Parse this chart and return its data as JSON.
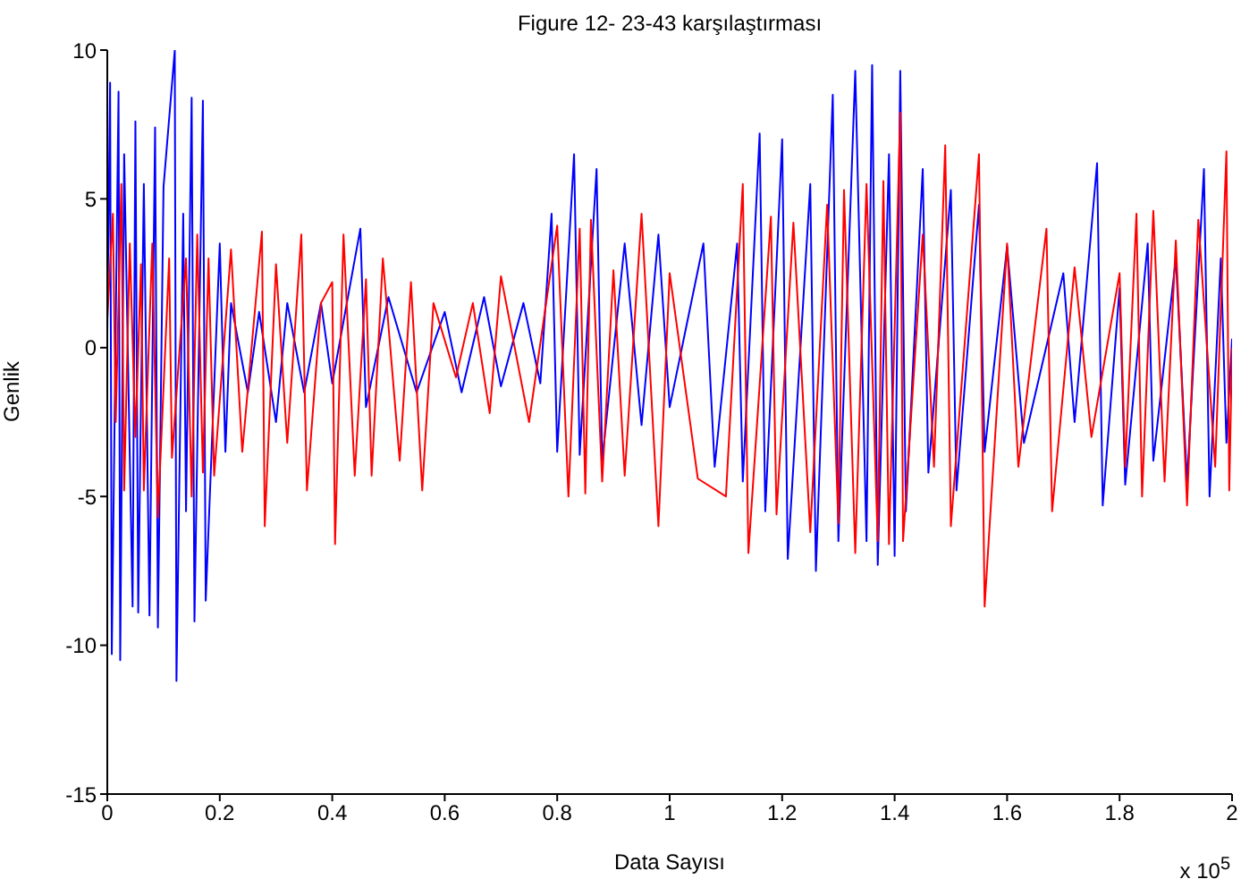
{
  "chart_data": {
    "type": "line",
    "title": "Figure 12- 23-43 karşılaştırması",
    "xlabel": "Data Sayısı",
    "ylabel": "Genlik",
    "annotations": [
      "x 10$^{5}$"
    ],
    "xlim": [
      0,
      2
    ],
    "xticks": [
      0,
      0.2,
      0.4,
      0.6,
      0.8,
      1,
      1.2,
      1.4,
      1.6,
      1.8,
      2
    ],
    "ylim": [
      -15,
      10
    ],
    "yticks": [
      -15,
      -10,
      -5,
      0,
      5,
      10
    ],
    "grid": false,
    "legend": false,
    "marker": "none",
    "line_style": "solid",
    "series": [
      {
        "color": "#0000ff",
        "x": [
          0,
          0.005,
          0.008,
          0.02,
          0.023,
          0.03,
          0.045,
          0.05,
          0.055,
          0.065,
          0.075,
          0.085,
          0.09,
          0.1,
          0.12,
          0.123,
          0.135,
          0.14,
          0.15,
          0.155,
          0.17,
          0.175,
          0.2,
          0.21,
          0.22,
          0.25,
          0.27,
          0.3,
          0.32,
          0.35,
          0.38,
          0.4,
          0.45,
          0.46,
          0.5,
          0.55,
          0.6,
          0.63,
          0.67,
          0.7,
          0.74,
          0.77,
          0.79,
          0.8,
          0.83,
          0.84,
          0.87,
          0.88,
          0.92,
          0.95,
          0.98,
          1.0,
          1.06,
          1.08,
          1.12,
          1.13,
          1.16,
          1.17,
          1.2,
          1.21,
          1.25,
          1.26,
          1.29,
          1.3,
          1.33,
          1.35,
          1.36,
          1.37,
          1.39,
          1.4,
          1.41,
          1.42,
          1.45,
          1.46,
          1.5,
          1.51,
          1.55,
          1.56,
          1.6,
          1.63,
          1.7,
          1.72,
          1.76,
          1.77,
          1.8,
          1.81,
          1.85,
          1.86,
          1.9,
          1.92,
          1.95,
          1.96,
          1.98,
          1.99,
          2
        ],
        "values": [
          0.5,
          8.9,
          -10.3,
          8.6,
          -10.5,
          6.5,
          -8.7,
          7.6,
          -8.9,
          5.5,
          -9,
          7.4,
          -9.4,
          5.4,
          10,
          -11.2,
          4.5,
          -5.5,
          8.4,
          -9.2,
          8.3,
          -8.5,
          3.5,
          -3.5,
          1.5,
          -1.5,
          1.2,
          -2.5,
          1.5,
          -1.5,
          1.5,
          -1.2,
          4,
          -2,
          1.7,
          -1.5,
          1.2,
          -1.5,
          1.7,
          -1.3,
          1.5,
          -1.2,
          4.5,
          -3.5,
          6.5,
          -3.6,
          6,
          -3.8,
          3.5,
          -2.6,
          3.8,
          -2,
          3.5,
          -4,
          3.5,
          -4.5,
          7.2,
          -5.5,
          7,
          -7.1,
          5.5,
          -7.5,
          8.5,
          -6.5,
          9.3,
          -6.5,
          9.5,
          -7.3,
          6.5,
          -7,
          9.3,
          -5.5,
          6,
          -4.2,
          5.3,
          -4.8,
          4.8,
          -3.5,
          3.4,
          -3.2,
          2.5,
          -2.5,
          6.2,
          -5.3,
          2,
          -4.6,
          3.5,
          -3.8,
          3,
          -4.5,
          6,
          -5,
          3,
          -3.2,
          0.3
        ]
      },
      {
        "color": "#ff0000",
        "x": [
          0,
          0.01,
          0.015,
          0.025,
          0.03,
          0.04,
          0.05,
          0.06,
          0.065,
          0.08,
          0.09,
          0.11,
          0.115,
          0.14,
          0.15,
          0.16,
          0.17,
          0.18,
          0.19,
          0.22,
          0.24,
          0.275,
          0.28,
          0.3,
          0.32,
          0.345,
          0.355,
          0.38,
          0.4,
          0.405,
          0.42,
          0.44,
          0.46,
          0.47,
          0.49,
          0.52,
          0.54,
          0.56,
          0.58,
          0.62,
          0.65,
          0.68,
          0.7,
          0.75,
          0.8,
          0.82,
          0.84,
          0.85,
          0.86,
          0.88,
          0.9,
          0.92,
          0.95,
          0.98,
          1.0,
          1.05,
          1.1,
          1.13,
          1.14,
          1.18,
          1.19,
          1.22,
          1.25,
          1.28,
          1.3,
          1.31,
          1.33,
          1.35,
          1.37,
          1.38,
          1.39,
          1.41,
          1.415,
          1.45,
          1.47,
          1.49,
          1.5,
          1.55,
          1.56,
          1.6,
          1.62,
          1.67,
          1.68,
          1.72,
          1.75,
          1.8,
          1.81,
          1.83,
          1.84,
          1.86,
          1.88,
          1.9,
          1.92,
          1.94,
          1.97,
          1.99,
          1.995,
          2
        ],
        "values": [
          1,
          4.5,
          -2.5,
          5.5,
          -4.8,
          3.5,
          -3,
          2.8,
          -4.8,
          3.5,
          -5.7,
          3,
          -3.7,
          3,
          -5,
          3.8,
          -4.2,
          3,
          -4.3,
          3.3,
          -3.5,
          3.9,
          -6,
          2.8,
          -3.2,
          3.8,
          -4.8,
          1.5,
          2.2,
          -6.6,
          3.8,
          -4.3,
          2.3,
          -4.3,
          3,
          -3.8,
          2.2,
          -4.8,
          1.5,
          -1,
          1.5,
          -2.2,
          2.4,
          -2.5,
          4.1,
          -5,
          4,
          -4.9,
          4.3,
          -4.5,
          2.6,
          -4.3,
          4.5,
          -6,
          2.5,
          -4.4,
          -5,
          5.5,
          -6.9,
          4.4,
          -5.6,
          4.2,
          -6.2,
          4.8,
          -5.9,
          5.3,
          -6.9,
          5.5,
          -6.5,
          5.6,
          -6.6,
          7.9,
          -6.5,
          3.8,
          -4,
          6.8,
          -6,
          6.5,
          -8.7,
          3.5,
          -4,
          4,
          -5.5,
          2.7,
          -3,
          2.5,
          -4,
          4.5,
          -5,
          4.6,
          -4.5,
          3.6,
          -5.3,
          4.3,
          -4,
          6.6,
          -4.8,
          0
        ]
      }
    ]
  }
}
